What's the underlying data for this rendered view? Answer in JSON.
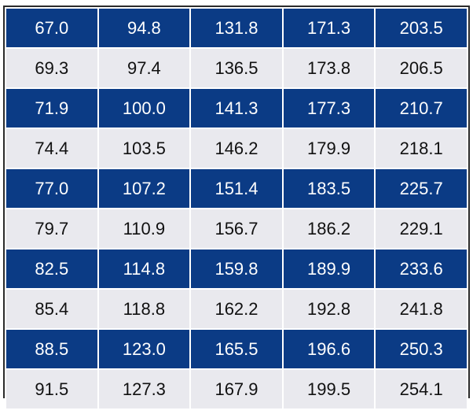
{
  "table": {
    "rows": [
      [
        "67.0",
        "94.8",
        "131.8",
        "171.3",
        "203.5"
      ],
      [
        "69.3",
        "97.4",
        "136.5",
        "173.8",
        "206.5"
      ],
      [
        "71.9",
        "100.0",
        "141.3",
        "177.3",
        "210.7"
      ],
      [
        "74.4",
        "103.5",
        "146.2",
        "179.9",
        "218.1"
      ],
      [
        "77.0",
        "107.2",
        "151.4",
        "183.5",
        "225.7"
      ],
      [
        "79.7",
        "110.9",
        "156.7",
        "186.2",
        "229.1"
      ],
      [
        "82.5",
        "114.8",
        "159.8",
        "189.9",
        "233.6"
      ],
      [
        "85.4",
        "118.8",
        "162.2",
        "192.8",
        "241.8"
      ],
      [
        "88.5",
        "123.0",
        "165.5",
        "196.6",
        "250.3"
      ],
      [
        "91.5",
        "127.3",
        "167.9",
        "199.5",
        "254.1"
      ]
    ]
  }
}
